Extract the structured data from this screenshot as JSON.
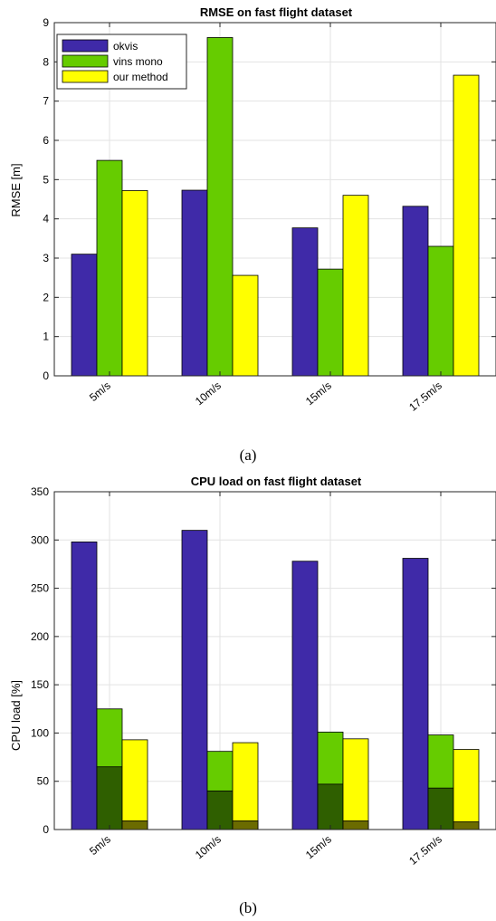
{
  "chart_data": [
    {
      "type": "bar",
      "title": "RMSE on fast flight dataset",
      "xlabel": "",
      "ylabel": "RMSE [m]",
      "ylim": [
        0,
        9
      ],
      "yticks": [
        0,
        1,
        2,
        3,
        4,
        5,
        6,
        7,
        8,
        9
      ],
      "categories": [
        "5m/s",
        "10m/s",
        "15m/s",
        "17.5m/s"
      ],
      "series": [
        {
          "name": "okvis",
          "color": "#3f2aa8",
          "values": [
            3.1,
            4.73,
            3.77,
            4.32
          ]
        },
        {
          "name": "vins mono",
          "color": "#66cc00",
          "values": [
            5.49,
            8.62,
            2.72,
            3.3
          ]
        },
        {
          "name": "our method",
          "color": "#ffff00",
          "values": [
            4.72,
            2.56,
            4.6,
            7.66
          ]
        }
      ],
      "grid": true,
      "legend_position": "top-left",
      "caption": "(a)"
    },
    {
      "type": "bar",
      "title": "CPU load on fast flight dataset",
      "xlabel": "",
      "ylabel": "CPU load [%]",
      "ylim": [
        0,
        350
      ],
      "yticks": [
        0,
        50,
        100,
        150,
        200,
        250,
        300,
        350
      ],
      "categories": [
        "5m/s",
        "10m/s",
        "15m/s",
        "17.5m/s"
      ],
      "series": [
        {
          "name": "okvis",
          "color": "#3f2aa8",
          "values": [
            298,
            310,
            278,
            281
          ]
        },
        {
          "name": "vins mono",
          "color": "#66cc00",
          "values": [
            125,
            81,
            101,
            98
          ],
          "dark_color": "#2f5f00",
          "dark_values": [
            65,
            40,
            47,
            43
          ]
        },
        {
          "name": "our method",
          "color": "#ffff00",
          "values": [
            93,
            90,
            94,
            83
          ],
          "dark_color": "#6b6b00",
          "dark_values": [
            9,
            9,
            9,
            8
          ]
        }
      ],
      "grid": true,
      "caption": "(b)"
    }
  ]
}
